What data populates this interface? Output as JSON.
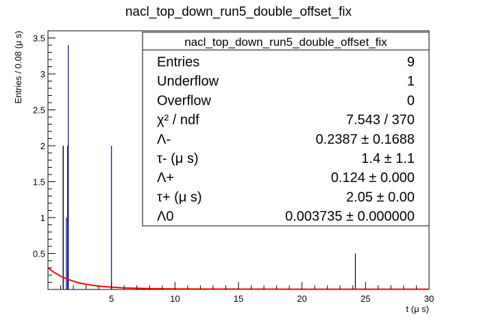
{
  "chart_data": {
    "type": "histogram",
    "title": "nacl_top_down_run5_double_offset_fix",
    "xlabel": "t (μ s)",
    "ylabel": "Entries / 0.08 (μ s)",
    "xlim": [
      0,
      30
    ],
    "ylim": [
      0,
      3.6
    ],
    "xticks": [
      5,
      10,
      15,
      20,
      25,
      30
    ],
    "yticks": [
      0.5,
      1,
      1.5,
      2,
      2.5,
      3,
      3.5
    ],
    "ytick_labels": [
      "0.5",
      "1",
      "1.5",
      "2",
      "2.5",
      "3",
      "3.5"
    ],
    "grid": false,
    "series": [
      {
        "kind": "histogram-bars",
        "color": "#00008b",
        "x": [
          1.2,
          1.45,
          1.55,
          1.6,
          5.0
        ],
        "values": [
          2,
          1,
          2,
          3.4,
          2
        ]
      },
      {
        "kind": "histogram-bars",
        "color": "#000000",
        "x": [
          1.2,
          24.2
        ],
        "values": [
          2,
          0.5
        ]
      },
      {
        "kind": "fit-curve",
        "color": "#ff0000",
        "x": [
          0.0,
          0.5,
          1.0,
          1.5,
          2.0,
          2.5,
          3.0,
          3.5,
          4.0,
          5.0,
          6.0,
          7.0,
          8.0,
          10.0,
          15.0,
          20.0,
          25.0,
          30.0
        ],
        "values": [
          0.3,
          0.235,
          0.185,
          0.145,
          0.115,
          0.09,
          0.072,
          0.058,
          0.047,
          0.032,
          0.022,
          0.016,
          0.012,
          0.008,
          0.005,
          0.004,
          0.004,
          0.004
        ]
      }
    ]
  },
  "stats": {
    "title": "nacl_top_down_run5_double_offset_fix",
    "rows": [
      {
        "label": "Entries",
        "value": "9"
      },
      {
        "label": "Underflow",
        "value": "1"
      },
      {
        "label": "Overflow",
        "value": "0"
      },
      {
        "label": "χ² / ndf",
        "value": "7.543 / 370"
      },
      {
        "label": "Λ-",
        "value": "0.2387 ± 0.1688"
      },
      {
        "label": "τ- (μ s)",
        "value": "1.4 ± 1.1"
      },
      {
        "label": "Λ+",
        "value": "0.124 ± 0.000"
      },
      {
        "label": "τ+ (μ s)",
        "value": "2.05 ± 0.00"
      },
      {
        "label": "Λ0",
        "value": "0.003735 ± 0.000000"
      }
    ]
  }
}
